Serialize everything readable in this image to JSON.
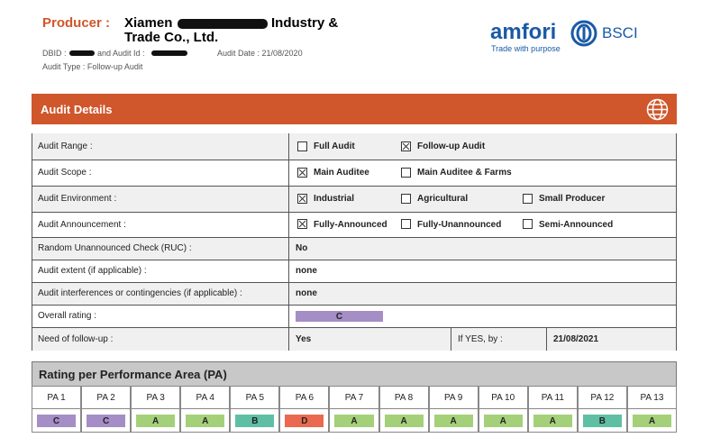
{
  "header": {
    "producer_label": "Producer :",
    "name_start": "Xiamen",
    "name_end": "Industry &",
    "name_line2": "Trade Co., Ltd.",
    "dbid_label": "DBID :",
    "audit_id_label": "and Audit Id :",
    "audit_date": "Audit Date : 21/08/2020",
    "audit_type": "Audit Type : Follow-up Audit",
    "logo": "amfori",
    "logo_tagline": "Trade with purpose",
    "logo_bsci": "BSCI"
  },
  "audit_details": {
    "title": "Audit Details",
    "rows": [
      {
        "label": "Audit Range :",
        "options": [
          {
            "text": "Full Audit",
            "checked": false
          },
          {
            "text": "Follow-up Audit",
            "checked": true
          }
        ]
      },
      {
        "label": "Audit Scope :",
        "options": [
          {
            "text": "Main Auditee",
            "checked": true
          },
          {
            "text": "Main Auditee & Farms",
            "checked": false
          }
        ]
      },
      {
        "label": "Audit Environment :",
        "options": [
          {
            "text": "Industrial",
            "checked": true
          },
          {
            "text": "Agricultural",
            "checked": false
          },
          {
            "text": "Small Producer",
            "checked": false
          }
        ]
      },
      {
        "label": "Audit Announcement :",
        "options": [
          {
            "text": "Fully-Announced",
            "checked": true
          },
          {
            "text": "Fully-Unannounced",
            "checked": false
          },
          {
            "text": "Semi-Announced",
            "checked": false
          }
        ]
      },
      {
        "label": "Random Unannounced Check (RUC) :",
        "value": "No"
      },
      {
        "label": "Audit extent (if applicable) :",
        "value": "none"
      },
      {
        "label": "Audit interferences or contingencies (if applicable) :",
        "value": "none"
      },
      {
        "label": "Overall rating :",
        "rating": "C"
      },
      {
        "label": "Need of follow-up :",
        "value": "Yes",
        "extra_label": "If YES, by :",
        "extra_value": "21/08/2021"
      }
    ]
  },
  "performance": {
    "title": "Rating per Performance Area (PA)",
    "rating_colors": {
      "A": "#a5d07a",
      "B": "#5fbfa5",
      "C": "#a58dc6",
      "D": "#e96a50"
    },
    "areas": [
      {
        "name": "PA 1",
        "rating": "C"
      },
      {
        "name": "PA 2",
        "rating": "C"
      },
      {
        "name": "PA 3",
        "rating": "A"
      },
      {
        "name": "PA 4",
        "rating": "A"
      },
      {
        "name": "PA 5",
        "rating": "B"
      },
      {
        "name": "PA 6",
        "rating": "D"
      },
      {
        "name": "PA 7",
        "rating": "A"
      },
      {
        "name": "PA 8",
        "rating": "A"
      },
      {
        "name": "PA 9",
        "rating": "A"
      },
      {
        "name": "PA 10",
        "rating": "A"
      },
      {
        "name": "PA 11",
        "rating": "A"
      },
      {
        "name": "PA 12",
        "rating": "B"
      },
      {
        "name": "PA 13",
        "rating": "A"
      }
    ]
  }
}
